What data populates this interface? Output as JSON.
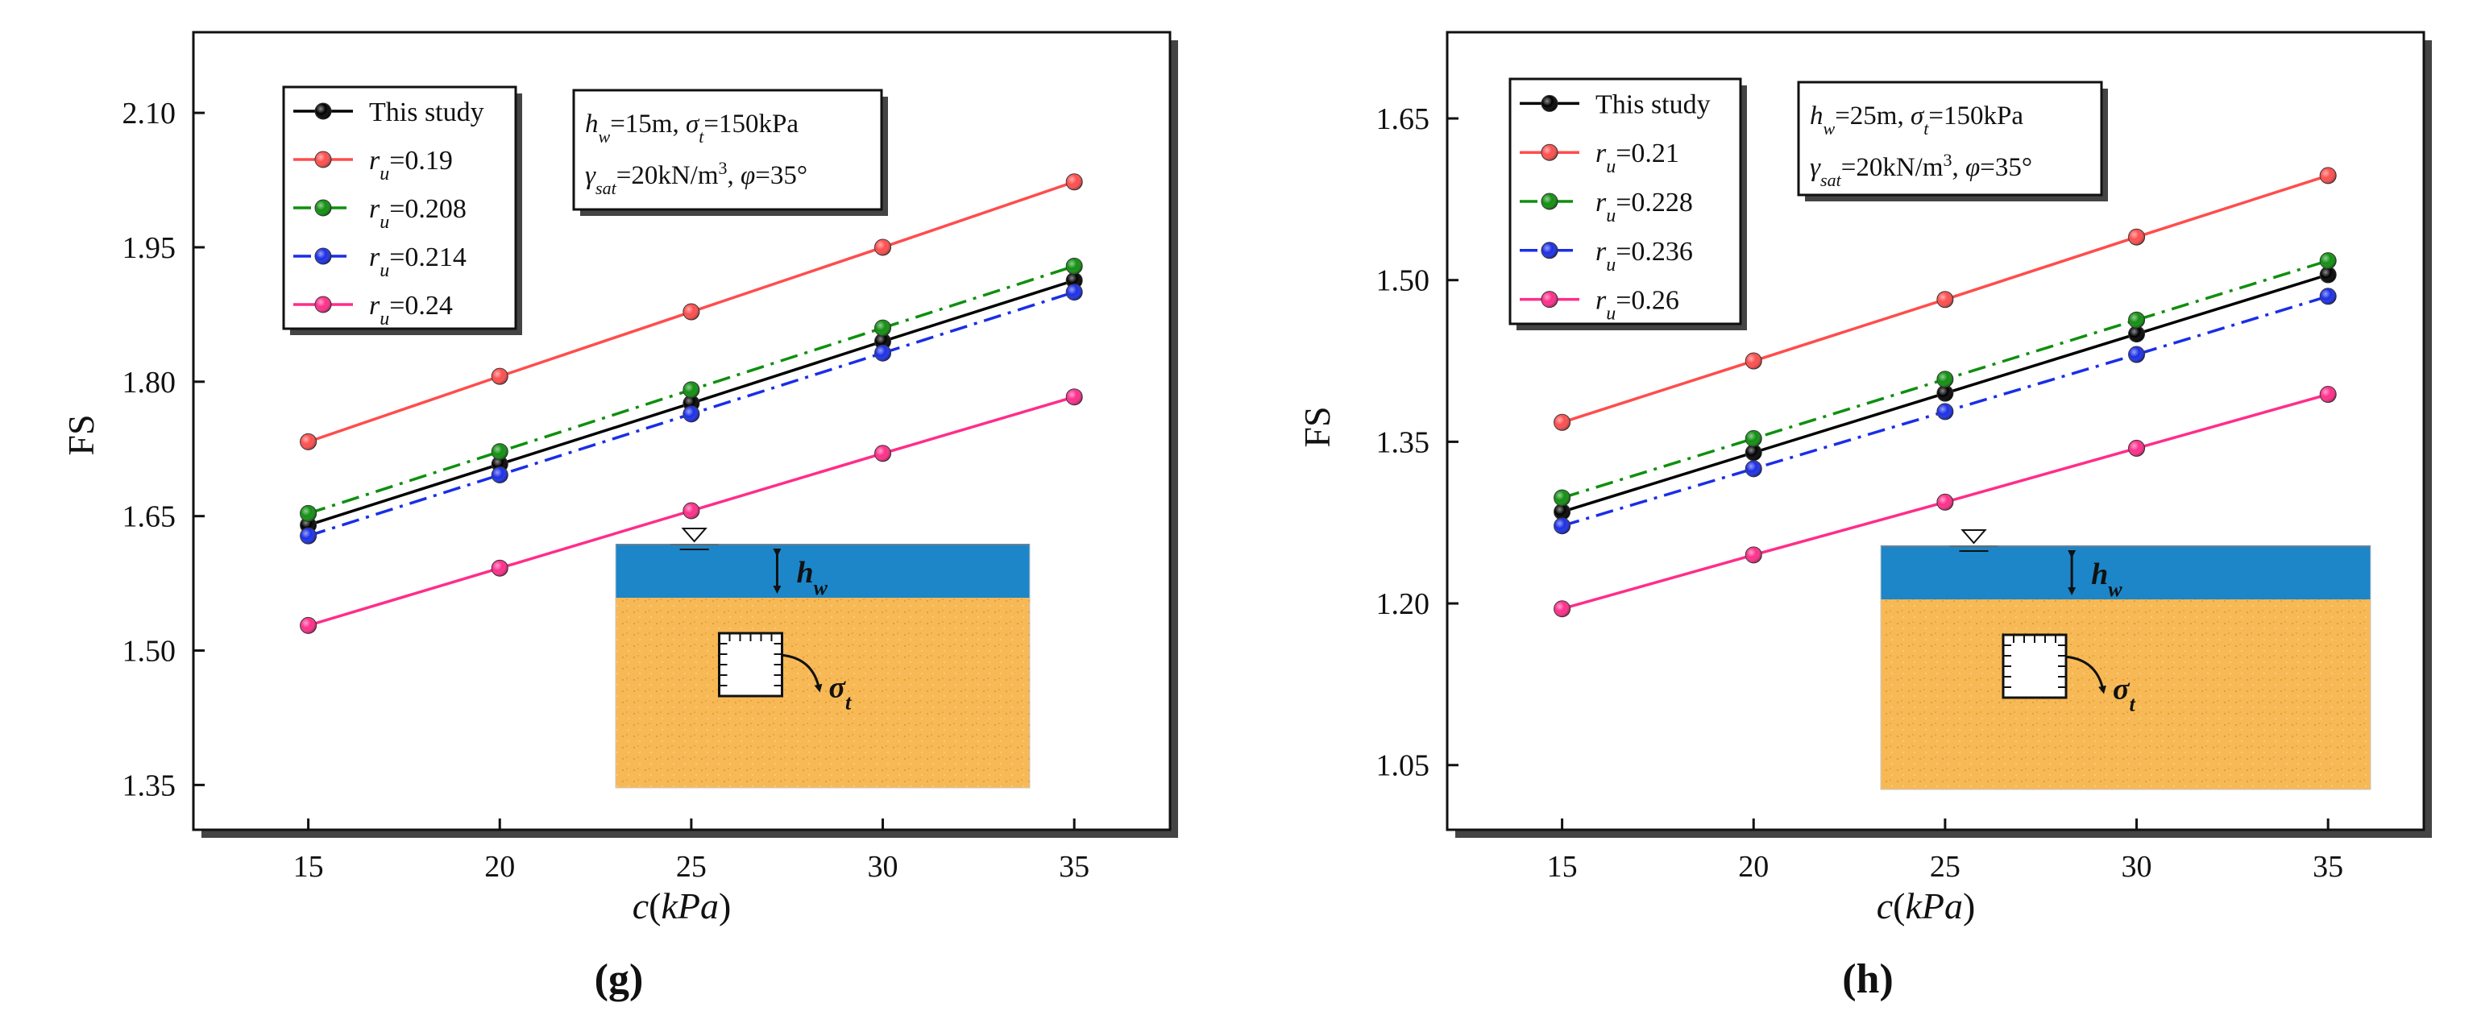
{
  "chart_data": [
    {
      "type": "line",
      "panel_label": "(g)",
      "xlabel_main": "c",
      "xlabel_unit": "kPa",
      "xlabel_open": "(",
      "xlabel_close": ")",
      "ylabel": "FS",
      "x": [
        15,
        20,
        25,
        30,
        35
      ],
      "xlim": [
        12,
        37.5
      ],
      "ylim": [
        1.3,
        2.19
      ],
      "xticks": [
        "15",
        "20",
        "25",
        "30",
        "35"
      ],
      "yticks": [
        "1.35",
        "1.50",
        "1.65",
        "1.80",
        "1.95",
        "2.10"
      ],
      "ytick_values": [
        1.35,
        1.5,
        1.65,
        1.8,
        1.95,
        2.1
      ],
      "annotation": {
        "hw_sym": "h",
        "hw_sub": "w",
        "hw_val": "=15m, ",
        "sig_sym": "σ",
        "sig_sub": "t",
        "sig_val": "=150kPa",
        "gam_sym": "γ",
        "gam_sub": "sat",
        "gam_val": "=20kN/m",
        "gam_sup": "3",
        "phi_sep": ", ",
        "phi_sym": "φ",
        "phi_val": "=35°"
      },
      "inset": {
        "hw_label": "h",
        "hw_sub": "w",
        "sigma_label": "σ",
        "sigma_sub": "t"
      },
      "series": [
        {
          "name": "This study",
          "values": [
            1.64,
            1.708,
            1.776,
            1.845,
            1.913
          ],
          "color": "#000000",
          "dash": "solid"
        },
        {
          "name": "0.19",
          "prefix": "r",
          "sub": "u",
          "eq": "=",
          "values": [
            1.733,
            1.806,
            1.878,
            1.95,
            2.023
          ],
          "color": "#ff4d4d",
          "dash": "solid"
        },
        {
          "name": "0.208",
          "prefix": "r",
          "sub": "u",
          "eq": "=",
          "values": [
            1.653,
            1.722,
            1.791,
            1.86,
            1.929
          ],
          "color": "#0f8f0f",
          "dash": "dashdot"
        },
        {
          "name": "0.214",
          "prefix": "r",
          "sub": "u",
          "eq": "=",
          "values": [
            1.628,
            1.696,
            1.764,
            1.832,
            1.9
          ],
          "color": "#1a2ee6",
          "dash": "dashdot"
        },
        {
          "name": "0.24",
          "prefix": "r",
          "sub": "u",
          "eq": "=",
          "values": [
            1.528,
            1.592,
            1.656,
            1.72,
            1.783
          ],
          "color": "#ff2d8a",
          "dash": "solid"
        }
      ]
    },
    {
      "type": "line",
      "panel_label": "(h)",
      "xlabel_main": "c",
      "xlabel_unit": "kPa",
      "xlabel_open": "(",
      "xlabel_close": ")",
      "ylabel": "FS",
      "x": [
        15,
        20,
        25,
        30,
        35
      ],
      "xlim": [
        12,
        37.5
      ],
      "ylim": [
        0.99,
        1.73
      ],
      "xticks": [
        "15",
        "20",
        "25",
        "30",
        "35"
      ],
      "yticks": [
        "1.05",
        "1.20",
        "1.35",
        "1.50",
        "1.65"
      ],
      "ytick_values": [
        1.05,
        1.2,
        1.35,
        1.5,
        1.65
      ],
      "annotation": {
        "hw_sym": "h",
        "hw_sub": "w",
        "hw_val": "=25m, ",
        "sig_sym": "σ",
        "sig_sub": "t",
        "sig_val": "=150kPa",
        "gam_sym": "γ",
        "gam_sub": "sat",
        "gam_val": "=20kN/m",
        "gam_sup": "3",
        "phi_sep": ", ",
        "phi_sym": "φ",
        "phi_val": "=35°"
      },
      "inset": {
        "hw_label": "h",
        "hw_sub": "w",
        "sigma_label": "σ",
        "sigma_sub": "t"
      },
      "series": [
        {
          "name": "This study",
          "values": [
            1.285,
            1.34,
            1.395,
            1.45,
            1.505
          ],
          "color": "#000000",
          "dash": "solid"
        },
        {
          "name": "0.21",
          "prefix": "r",
          "sub": "u",
          "eq": "=",
          "values": [
            1.368,
            1.425,
            1.482,
            1.54,
            1.597
          ],
          "color": "#ff4d4d",
          "dash": "solid"
        },
        {
          "name": "0.228",
          "prefix": "r",
          "sub": "u",
          "eq": "=",
          "values": [
            1.298,
            1.353,
            1.408,
            1.463,
            1.518
          ],
          "color": "#0f8f0f",
          "dash": "dashdot"
        },
        {
          "name": "0.236",
          "prefix": "r",
          "sub": "u",
          "eq": "=",
          "values": [
            1.272,
            1.325,
            1.378,
            1.431,
            1.485
          ],
          "color": "#1a2ee6",
          "dash": "dashdot"
        },
        {
          "name": "0.26",
          "prefix": "r",
          "sub": "u",
          "eq": "=",
          "values": [
            1.195,
            1.245,
            1.294,
            1.344,
            1.394
          ],
          "color": "#ff2d8a",
          "dash": "solid"
        }
      ]
    }
  ]
}
